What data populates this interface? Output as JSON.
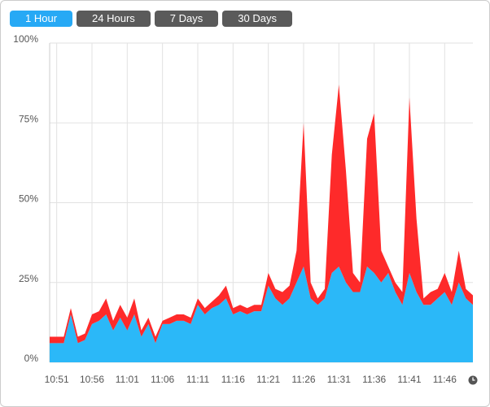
{
  "range_buttons": [
    "1 Hour",
    "24 Hours",
    "7 Days",
    "30 Days"
  ],
  "selected_index": 0,
  "chart_data": {
    "type": "stacked-area",
    "x": [
      "10:50",
      "10:51",
      "10:52",
      "10:53",
      "10:54",
      "10:55",
      "10:56",
      "10:57",
      "10:58",
      "10:59",
      "11:00",
      "11:01",
      "11:02",
      "11:03",
      "11:04",
      "11:05",
      "11:06",
      "11:07",
      "11:08",
      "11:09",
      "11:10",
      "11:11",
      "11:12",
      "11:13",
      "11:14",
      "11:15",
      "11:16",
      "11:17",
      "11:18",
      "11:19",
      "11:20",
      "11:21",
      "11:22",
      "11:23",
      "11:24",
      "11:25",
      "11:26",
      "11:27",
      "11:28",
      "11:29",
      "11:30",
      "11:31",
      "11:32",
      "11:33",
      "11:34",
      "11:35",
      "11:36",
      "11:37",
      "11:38",
      "11:39",
      "11:40",
      "11:41",
      "11:42",
      "11:43",
      "11:44",
      "11:45",
      "11:46",
      "11:47",
      "11:48",
      "11:49",
      "11:50"
    ],
    "xlim": [
      "10:50",
      "11:50"
    ],
    "xticks": [
      "10:51",
      "10:56",
      "11:01",
      "11:06",
      "11:11",
      "11:16",
      "11:21",
      "11:26",
      "11:31",
      "11:36",
      "11:41",
      "11:46"
    ],
    "series": [
      {
        "color": "#2bb8f8",
        "values": [
          6,
          6,
          6,
          15,
          6,
          7,
          12,
          13,
          15,
          10,
          14,
          10,
          15,
          8,
          12,
          6,
          12,
          12,
          13,
          13,
          12,
          18,
          15,
          17,
          18,
          20,
          15,
          16,
          15,
          16,
          16,
          24,
          20,
          18,
          20,
          25,
          30,
          20,
          18,
          20,
          28,
          30,
          25,
          22,
          22,
          30,
          28,
          25,
          28,
          22,
          18,
          28,
          22,
          18,
          18,
          20,
          22,
          18,
          25,
          20,
          18
        ]
      },
      {
        "color": "#fe2a2a",
        "values": [
          2,
          2,
          2,
          2,
          2,
          2,
          3,
          3,
          5,
          3,
          4,
          4,
          5,
          2,
          2,
          2,
          1,
          2,
          2,
          2,
          2,
          2,
          2,
          2,
          3,
          4,
          2,
          2,
          2,
          2,
          2,
          4,
          3,
          4,
          4,
          10,
          45,
          5,
          2,
          3,
          37,
          57,
          35,
          6,
          3,
          40,
          50,
          10,
          2,
          3,
          4,
          55,
          23,
          2,
          4,
          3,
          6,
          4,
          10,
          3,
          3
        ]
      }
    ],
    "ylim": [
      0,
      100
    ],
    "yticks": [
      {
        "value": 0,
        "label": "0%"
      },
      {
        "value": 25,
        "label": "25%"
      },
      {
        "value": 50,
        "label": "50%"
      },
      {
        "value": 75,
        "label": "75%"
      },
      {
        "value": 100,
        "label": "100%"
      }
    ],
    "grid": true
  }
}
